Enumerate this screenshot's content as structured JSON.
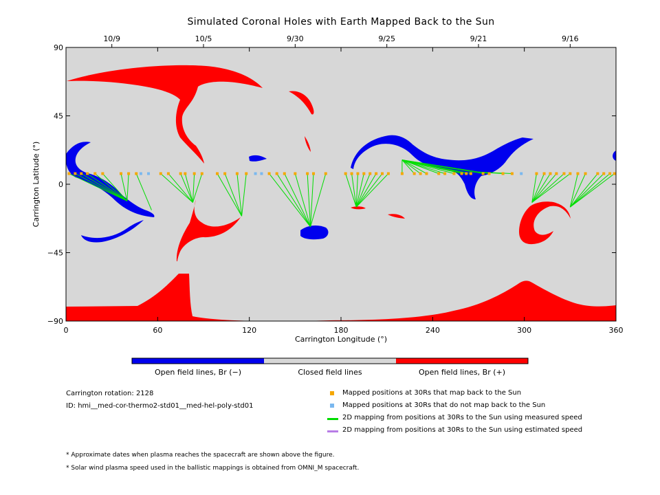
{
  "chart_data": {
    "type": "map",
    "title": "Simulated Coronal Holes with Earth Mapped Back to the Sun",
    "xlabel": "Carrington Longitude (°)",
    "ylabel": "Carrington Latitude (°)",
    "xlim": [
      0,
      360
    ],
    "ylim": [
      -90,
      90
    ],
    "x_ticks": [
      0,
      60,
      120,
      180,
      240,
      300,
      360
    ],
    "y_ticks": [
      90,
      45,
      0,
      -45,
      -90
    ],
    "y_tick_labels": [
      "90",
      "45",
      "0",
      "−45",
      "−90"
    ],
    "top_axis_dates": [
      {
        "lon": 30,
        "label": "10/9"
      },
      {
        "lon": 90,
        "label": "10/5"
      },
      {
        "lon": 150,
        "label": "9/30"
      },
      {
        "lon": 210,
        "label": "9/25"
      },
      {
        "lon": 270,
        "label": "9/21"
      },
      {
        "lon": 330,
        "label": "9/16"
      }
    ],
    "colors": {
      "closed": "#d7d7d7",
      "open_negative": "#0000ee",
      "open_positive": "#ff0000",
      "mapped_yes": "#f5a700",
      "mapped_no": "#7ab8ef",
      "line_measured": "#00dd00",
      "line_estimated": "#b87ce6"
    },
    "earth_latitude": 7,
    "mapped_longitudes": [
      2,
      6,
      10,
      14,
      19,
      24,
      36,
      41,
      46,
      62,
      67,
      75,
      78,
      84,
      89,
      99,
      104,
      112,
      118,
      133,
      138,
      143,
      150,
      158,
      162,
      170,
      183,
      187,
      191,
      195,
      199,
      203,
      207,
      211,
      220,
      228,
      232,
      236,
      244,
      248,
      254,
      259,
      262,
      265,
      273,
      277,
      286,
      292,
      308,
      313,
      317,
      321,
      326,
      330,
      335,
      340,
      348,
      352,
      356,
      359
    ],
    "unmapped_longitudes": [
      49,
      54,
      124,
      128,
      298
    ],
    "footpoints": [
      {
        "foot": [
          40,
          -11
        ],
        "sources": [
          2,
          6,
          10,
          14,
          19,
          24,
          36,
          41
        ]
      },
      {
        "foot": [
          56,
          -17
        ],
        "sources": [
          46
        ]
      },
      {
        "foot": [
          83,
          -12
        ],
        "sources": [
          62,
          67,
          75,
          78,
          84,
          89
        ]
      },
      {
        "foot": [
          115,
          -21
        ],
        "sources": [
          99,
          104,
          112,
          118
        ]
      },
      {
        "foot": [
          160,
          -28
        ],
        "sources": [
          133,
          138,
          143,
          150,
          158,
          162,
          170
        ]
      },
      {
        "foot": [
          190,
          -15
        ],
        "sources": [
          183,
          187,
          191,
          195,
          199,
          203,
          207,
          211
        ]
      },
      {
        "foot": [
          220,
          16
        ],
        "sources": [
          220,
          228,
          232,
          236,
          244,
          248,
          254,
          259,
          262,
          265,
          273,
          277
        ]
      },
      {
        "foot": [
          270,
          8
        ],
        "sources": [
          286,
          292
        ]
      },
      {
        "foot": [
          305,
          -12
        ],
        "sources": [
          308,
          313,
          317,
          321,
          326,
          330
        ]
      },
      {
        "foot": [
          330,
          -15
        ],
        "sources": [
          335,
          340,
          348,
          352,
          356,
          359
        ]
      }
    ],
    "colorbar": [
      {
        "label": "Open field lines, Br (−)",
        "color": "#0000ee"
      },
      {
        "label": "Closed field lines",
        "color": "#d7d7d7"
      },
      {
        "label": "Open field lines, Br (+)",
        "color": "#ff0000"
      }
    ]
  },
  "info": {
    "rotation": "Carrington rotation: 2128",
    "id": "ID: hmi__med-cor-thermo2-std01__med-hel-poly-std01"
  },
  "legend": [
    {
      "kind": "square",
      "color": "#f5a700",
      "label": "Mapped positions at 30Rs that map back to the Sun"
    },
    {
      "kind": "square",
      "color": "#7ab8ef",
      "label": "Mapped positions at 30Rs that do not map back to the Sun"
    },
    {
      "kind": "line",
      "color": "#00dd00",
      "label": "2D mapping from positions at 30Rs to the Sun using measured speed"
    },
    {
      "kind": "line",
      "color": "#b87ce6",
      "label": "2D mapping from positions at 30Rs to the Sun using estimated speed"
    }
  ],
  "notes": [
    "* Approximate dates when plasma reaches the spacecraft are shown above the figure.",
    "* Solar wind plasma speed used in the ballistic mappings is obtained from OMNI_M spacecraft."
  ]
}
